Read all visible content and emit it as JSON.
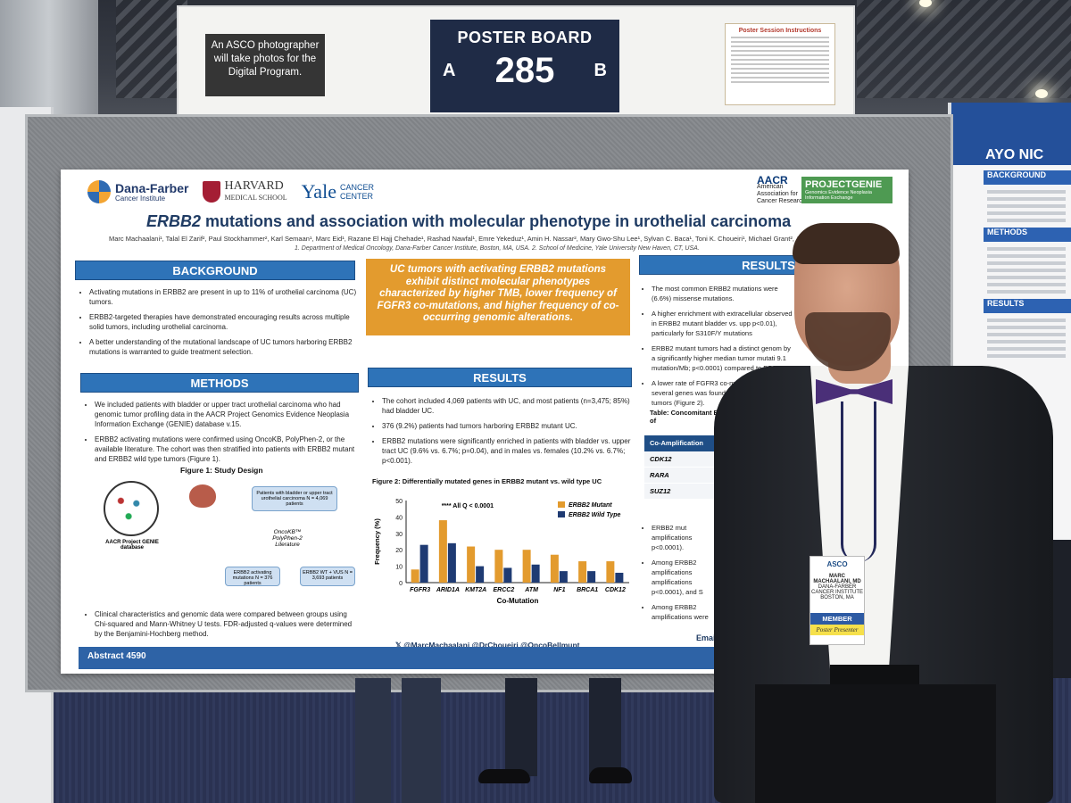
{
  "header": {
    "notice": "An ASCO photographer will take photos for the Digital Program.",
    "poster_board_label": "POSTER BOARD",
    "board_number": "285",
    "side_a": "A",
    "side_b": "B",
    "instructions_title": "Poster Session Instructions"
  },
  "poster": {
    "logos": {
      "dana_farber": "Dana-Farber",
      "dana_farber_sub": "Cancer Institute",
      "harvard": "HARVARD",
      "harvard_sub": "MEDICAL SCHOOL",
      "yale": "Yale",
      "yale_sub_1": "CANCER",
      "yale_sub_2": "CENTER",
      "aacr": "AACR",
      "aacr_sub": "American Association for Cancer Research",
      "genie": "PROJECTGENIE",
      "genie_sub": "Genomics Evidence Neoplasia Information Exchange"
    },
    "title_gene": "ERBB2",
    "title_rest": " mutations and association with molecular phenotype in urothelial carcinoma",
    "authors": "Marc Machaalani¹, Talal El Zarif², Paul Stockhammer², Karl Semaan¹, Marc Eid¹, Razane El Hajj Chehade¹, Rashad Nawfal¹, Emre Yekeduz¹, Amin H. Nassar², Mary Gwo-Shu Lee¹, Sylvan C. Baca¹, Toni K. Choueiri¹, Michael Grant², Jo...",
    "affiliations": "1. Department of Medical Oncology, Dana-Farber Cancer Institute, Boston, MA, USA. 2. School of Medicine, Yale University New Haven, CT, USA.",
    "background": {
      "heading": "BACKGROUND",
      "items": [
        "Activating mutations in ERBB2 are present in up to 11% of urothelial carcinoma (UC) tumors.",
        "ERBB2-targeted therapies have demonstrated encouraging results across multiple solid tumors, including urothelial carcinoma.",
        "A better understanding of the mutational landscape of UC tumors harboring ERBB2 mutations is warranted to guide treatment selection."
      ]
    },
    "highlight": "UC tumors with activating ERBB2 mutations exhibit distinct molecular phenotypes characterized by higher TMB, lower frequency of FGFR3 co-mutations, and higher frequency of co-occurring genomic alterations.",
    "methods": {
      "heading": "METHODS",
      "items": [
        "We included patients with bladder or upper tract urothelial carcinoma who had genomic tumor profiling data in the AACR Project Genomics Evidence Neoplasia Information Exchange (GENIE) database v.15.",
        "ERBB2 activating mutations were confirmed using OncoKB, PolyPhen-2, or the available literature. The cohort was then stratified into patients with ERBB2 mutant and ERBB2 wild type tumors (Figure 1)."
      ],
      "closing": "Clinical characteristics and genomic data were compared between groups using Chi-squared and Mann-Whitney U tests. FDR-adjusted q-values were determined by the Benjamini-Hochberg method."
    },
    "figure1": {
      "caption": "Figure 1: Study Design",
      "genie_label": "AACR Project GENIE database",
      "patients_box": "Patients with bladder or upper tract urothelial carcinoma N = 4,069 patients",
      "oncokb": "OncoKB™ PolyPhen-2 Literature",
      "mut_box": "ERBB2 activating mutations N = 376 patients",
      "wt_box": "ERBB2 WT + VUS N = 3,693 patients"
    },
    "results_mid": {
      "heading": "RESULTS",
      "items": [
        "The cohort included 4,069 patients with UC, and most patients (n=3,475; 85%) had bladder UC.",
        "376 (9.2%) patients had tumors harboring ERBB2 mutant UC.",
        "ERBB2 mutations were significantly enriched in patients with bladder vs. upper tract UC (9.6% vs. 6.7%; p=0.04), and in males vs. females (10.2% vs. 6.7%; p<0.001)."
      ]
    },
    "results_right": {
      "heading": "RESULTS",
      "items": [
        "The most common ERBB2 mutations were (6.6%) missense mutations.",
        "A higher enrichment with extracellular observed in ERBB2 mutant bladder vs. upp p<0.01), particularly for S310F/Y mutations",
        "ERBB2 mutant tumors had a distinct genom by a significantly higher median tumor mutati 9.1 mutation/Mb; p<0.0001) compared to ERBB2",
        "A lower rate of FGFR3 co-mutation and a several genes was found in ERBB2 m wild type tumors (Figure 2)."
      ],
      "table_title": "Table: Concomitant ER frequency of",
      "table_header": "Co-Amplification",
      "table_rows": [
        "CDK12",
        "RARA",
        "SUZ12"
      ],
      "lower_items": [
        "ERBB2 mut amplifications p<0.0001).",
        "Among ERBB2 amplifications amplifications p<0.0001), and S",
        "Among ERBB2 amplifications were"
      ],
      "email": "Email:"
    },
    "social": "@MarcMachaalani @DrChoueiri @OncoBellmunt",
    "abstract": "Abstract 4590"
  },
  "right_poster": {
    "header": "AYO NIC",
    "sections": [
      "BACKGROUND",
      "METHODS",
      "RESULTS"
    ]
  },
  "badge": {
    "org": "ASCO",
    "name": "MARC MACHAALANI, MD",
    "affil": "DANA-FARBER CANCER INSTITUTE BOSTON, MA",
    "member": "MEMBER",
    "role": "Poster Presenter"
  },
  "chart_data": {
    "type": "bar",
    "title": "Figure 2: Differentially mutated genes in ERBB2 mutant vs. wild type UC",
    "annotation": "**** All Q < 0.0001",
    "xlabel": "Co-Mutation",
    "ylabel": "Frequency (%)",
    "ylim": [
      0,
      50
    ],
    "yticks": [
      0,
      10,
      20,
      30,
      40,
      50
    ],
    "categories": [
      "FGFR3",
      "ARID1A",
      "KMT2A",
      "ERCC2",
      "ATM",
      "NF1",
      "BRCA1",
      "CDK12"
    ],
    "series": [
      {
        "name": "ERBB2 Mutant",
        "color": "#e39b2e",
        "values": [
          8,
          38,
          22,
          20,
          20,
          17,
          13,
          13
        ]
      },
      {
        "name": "ERBB2 Wild Type",
        "color": "#1f3b73",
        "values": [
          23,
          24,
          10,
          9,
          11,
          7,
          7,
          6
        ]
      }
    ]
  }
}
